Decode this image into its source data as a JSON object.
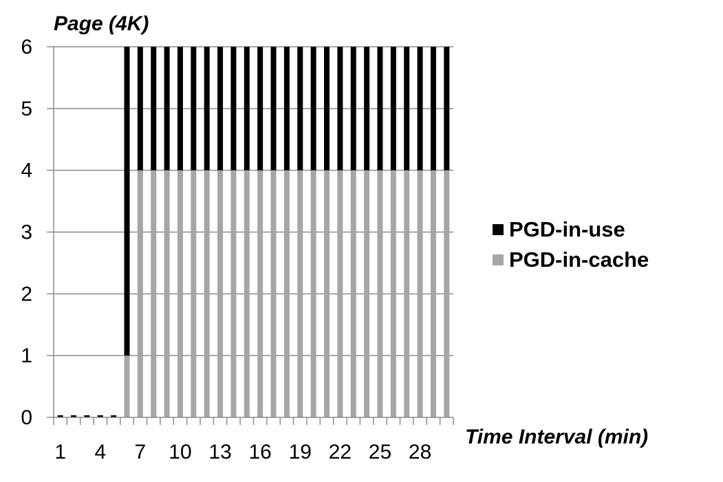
{
  "chart_data": {
    "type": "bar",
    "stacked": true,
    "ylabel": "Page (4K)",
    "xlabel": "Time Interval (min)",
    "ylim": [
      0,
      6
    ],
    "yticks": [
      0,
      1,
      2,
      3,
      4,
      5,
      6
    ],
    "grid": true,
    "legend_position": "right",
    "categories": [
      1,
      2,
      3,
      4,
      5,
      6,
      7,
      8,
      9,
      10,
      11,
      12,
      13,
      14,
      15,
      16,
      17,
      18,
      19,
      20,
      21,
      22,
      23,
      24,
      25,
      26,
      27,
      28,
      29,
      30
    ],
    "x_tick_labels": [
      "1",
      "4",
      "7",
      "10",
      "13",
      "16",
      "19",
      "22",
      "25",
      "28"
    ],
    "series": [
      {
        "name": "PGD-in-cache",
        "color": "#a6a6a6",
        "values": [
          0,
          0,
          0,
          0,
          0,
          1,
          4,
          4,
          4,
          4,
          4,
          4,
          4,
          4,
          4,
          4,
          4,
          4,
          4,
          4,
          4,
          4,
          4,
          4,
          4,
          4,
          4,
          4,
          4,
          4
        ]
      },
      {
        "name": "PGD-in-use",
        "color": "#000000",
        "values": [
          0,
          0,
          0,
          0,
          0,
          5,
          2,
          2,
          2,
          2,
          2,
          2,
          2,
          2,
          2,
          2,
          2,
          2,
          2,
          2,
          2,
          2,
          2,
          2,
          2,
          2,
          2,
          2,
          2,
          2
        ]
      }
    ]
  }
}
